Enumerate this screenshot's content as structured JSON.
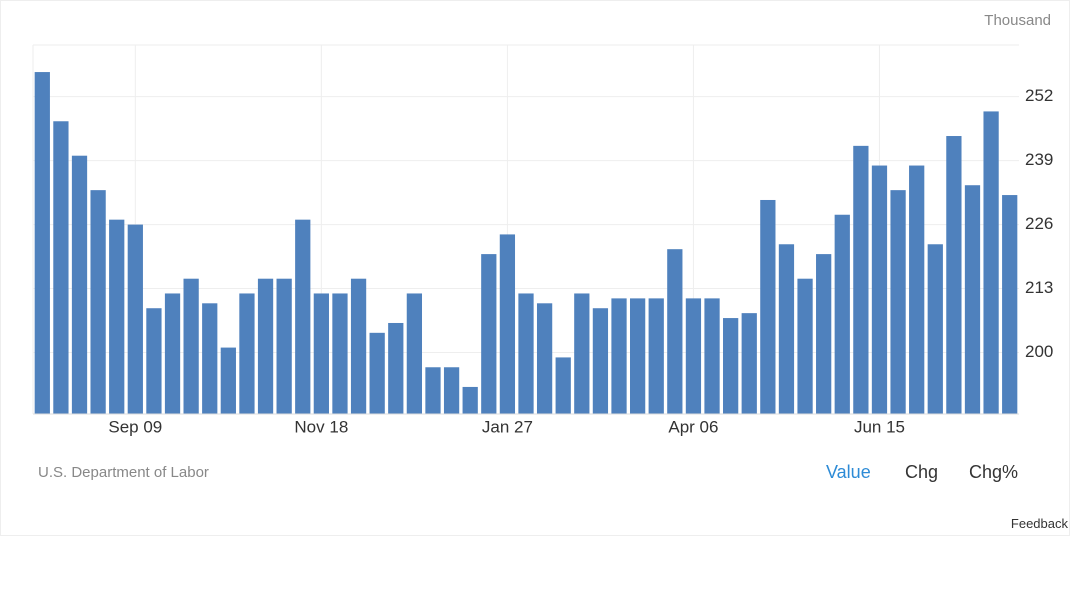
{
  "chart_data": {
    "type": "bar",
    "unit_label": "Thousand",
    "source": "U.S. Department of Labor",
    "categories": [
      null,
      null,
      null,
      null,
      null,
      "Sep 09",
      null,
      null,
      null,
      null,
      null,
      null,
      null,
      null,
      null,
      "Nov 18",
      null,
      null,
      null,
      null,
      null,
      null,
      null,
      null,
      null,
      "Jan 27",
      null,
      null,
      null,
      null,
      null,
      null,
      null,
      null,
      null,
      "Apr 06",
      null,
      null,
      null,
      null,
      null,
      null,
      null,
      null,
      null,
      "Jun 15",
      null,
      null,
      null,
      null,
      null,
      null,
      null
    ],
    "values": [
      257,
      247,
      240,
      233,
      227,
      226,
      209,
      212,
      215,
      210,
      201,
      212,
      215,
      215,
      227,
      212,
      212,
      215,
      204,
      206,
      212,
      197,
      197,
      193,
      220,
      224,
      212,
      210,
      199,
      212,
      209,
      211,
      211,
      211,
      221,
      211,
      211,
      207,
      208,
      231,
      222,
      215,
      220,
      228,
      242,
      238,
      233,
      238,
      222,
      244,
      234,
      249,
      232
    ],
    "color": "#4f81bd",
    "ylim": [
      187.5,
      262.5
    ],
    "yticks": [
      200,
      213,
      226,
      239,
      252
    ],
    "grid": true
  },
  "controls": [
    "Value",
    "Chg",
    "Chg%"
  ],
  "feedback": "Feedback"
}
